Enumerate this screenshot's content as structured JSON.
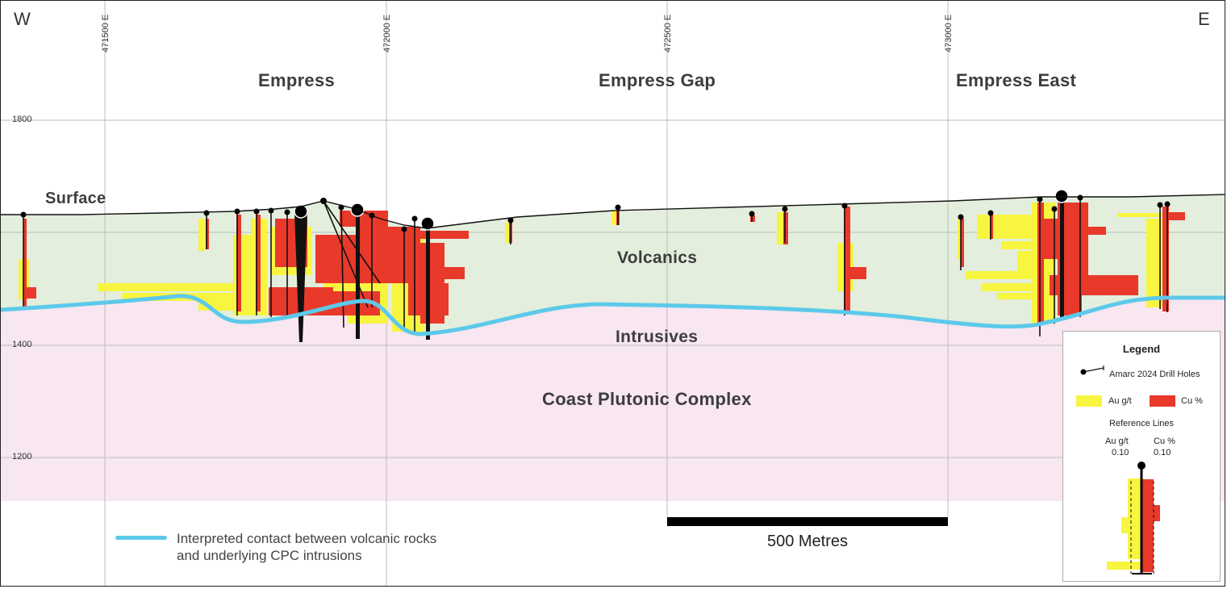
{
  "directions": {
    "west": "W",
    "east": "E"
  },
  "eastings": [
    "471500 E",
    "472000 E",
    "472500 E",
    "473000 E"
  ],
  "elevations": [
    "1800",
    "1400",
    "1200"
  ],
  "zones": {
    "empress": "Empress",
    "empress_gap": "Empress Gap",
    "empress_east": "Empress East"
  },
  "units": {
    "surface": "Surface",
    "volcanics": "Volcanics",
    "intrusives": "Intrusives",
    "cpc": "Coast Plutonic Complex"
  },
  "legend": {
    "title": "Legend",
    "drill_holes": "Amarc 2024 Drill Holes",
    "au": "Au g/t",
    "cu": "Cu %",
    "reference_lines": "Reference Lines",
    "ref_au_label": "Au g/t",
    "ref_au_value": "0.10",
    "ref_cu_label": "Cu %",
    "ref_cu_value": "0.10"
  },
  "contact_note": {
    "line1": "Interpreted contact between volcanic rocks",
    "line2": "and underlying CPC intrusions"
  },
  "scale_bar": "500 Metres",
  "colors": {
    "volcanics": "#e3eedd",
    "cpc": "#f8e6f1",
    "contact": "#5cc9ea",
    "au": "#f7f540",
    "cu": "#e8392b"
  }
}
